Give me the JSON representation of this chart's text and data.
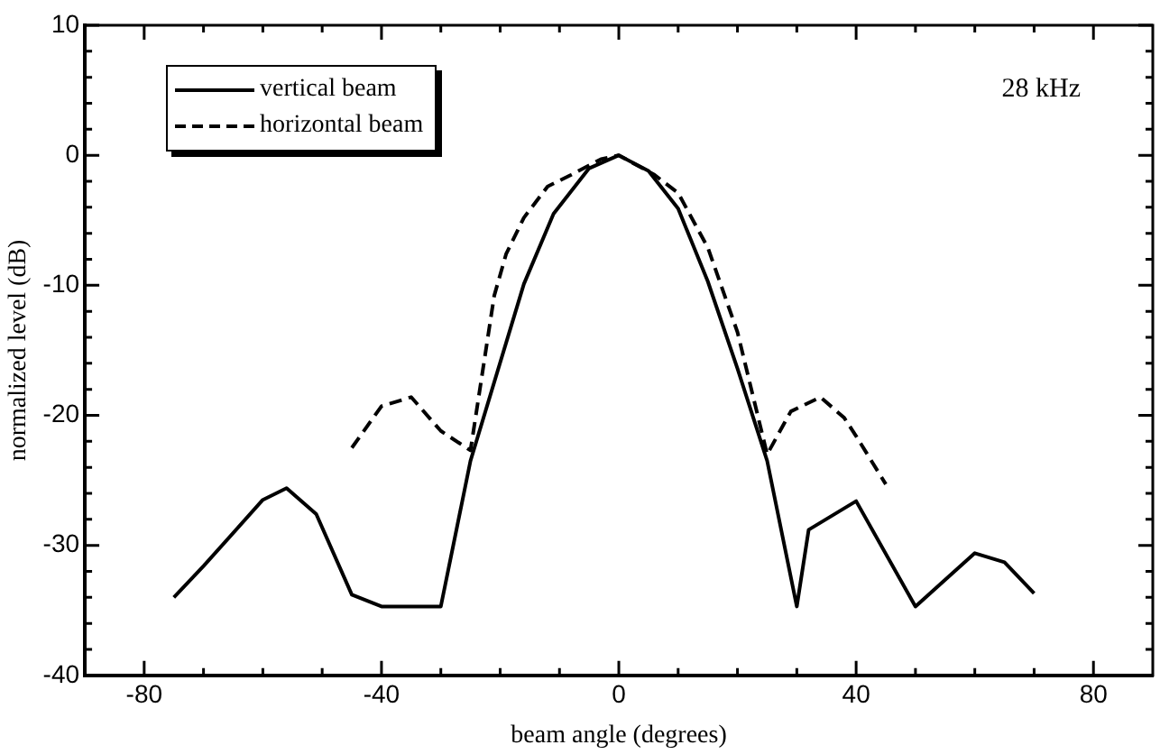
{
  "chart_data": {
    "type": "line",
    "xlabel": "beam angle (degrees)",
    "ylabel": "normalized level (dB)",
    "annotations": [
      "28 kHz"
    ],
    "xlim": [
      -90,
      90
    ],
    "ylim": [
      -40,
      10
    ],
    "xticks": [
      {
        "value": -90,
        "label": null
      },
      -80,
      {
        "value": -70,
        "label": null
      },
      {
        "value": -60,
        "label": null
      },
      {
        "value": -50,
        "label": null
      },
      -40,
      {
        "value": -30,
        "label": null
      },
      {
        "value": -20,
        "label": null
      },
      {
        "value": -10,
        "label": null
      },
      0,
      {
        "value": 10,
        "label": null
      },
      {
        "value": 20,
        "label": null
      },
      {
        "value": 30,
        "label": null
      },
      40,
      {
        "value": 50,
        "label": null
      },
      {
        "value": 60,
        "label": null
      },
      {
        "value": 70,
        "label": null
      },
      80
    ],
    "yticks": [
      -40,
      {
        "value": -38,
        "label": null
      },
      {
        "value": -36,
        "label": null
      },
      {
        "value": -34,
        "label": null
      },
      {
        "value": -32,
        "label": null
      },
      -30,
      {
        "value": -28,
        "label": null
      },
      {
        "value": -26,
        "label": null
      },
      {
        "value": -24,
        "label": null
      },
      {
        "value": -22,
        "label": null
      },
      -20,
      {
        "value": -18,
        "label": null
      },
      {
        "value": -16,
        "label": null
      },
      {
        "value": -14,
        "label": null
      },
      {
        "value": -12,
        "label": null
      },
      -10,
      {
        "value": -8,
        "label": null
      },
      {
        "value": -6,
        "label": null
      },
      {
        "value": -4,
        "label": null
      },
      {
        "value": -2,
        "label": null
      },
      0,
      {
        "value": 2,
        "label": null
      },
      {
        "value": 4,
        "label": null
      },
      {
        "value": 6,
        "label": null
      },
      {
        "value": 8,
        "label": null
      },
      10
    ],
    "grid": false,
    "legend": "top left",
    "marker": "none",
    "series": [
      {
        "name": "vertical beam",
        "color": "#000000",
        "line_style": "solid",
        "x": [
          -75,
          -70,
          -60,
          -56,
          -51,
          -45,
          -40,
          -30,
          -25,
          -16,
          -11,
          -5,
          0,
          5,
          10,
          15,
          20,
          25,
          30,
          32,
          40,
          50,
          60,
          65,
          70
        ],
        "values": [
          -34,
          -31.6,
          -26.5,
          -25.6,
          -27.6,
          -33.8,
          -34.7,
          -34.7,
          -23.5,
          -9.9,
          -4.5,
          -1,
          0,
          -1.2,
          -4.1,
          -9.7,
          -16.4,
          -23.5,
          -34.7,
          -28.8,
          -26.6,
          -34.7,
          -30.6,
          -31.3,
          -33.7
        ]
      },
      {
        "name": "horizontal beam",
        "color": "#000000",
        "line_style": "dashed",
        "x": [
          -45,
          -40,
          -35,
          -30,
          -25,
          -21,
          -19,
          -16,
          -12,
          -8,
          -3,
          0,
          6,
          10,
          15,
          20,
          25,
          29,
          34,
          38,
          40,
          45
        ],
        "values": [
          -22.5,
          -19.3,
          -18.6,
          -21.2,
          -22.7,
          -10.8,
          -7.6,
          -4.8,
          -2.4,
          -1.5,
          -0.3,
          0,
          -1.5,
          -2.9,
          -7.1,
          -13.6,
          -23,
          -19.7,
          -18.6,
          -20.2,
          -21.6,
          -25.3
        ]
      }
    ]
  }
}
